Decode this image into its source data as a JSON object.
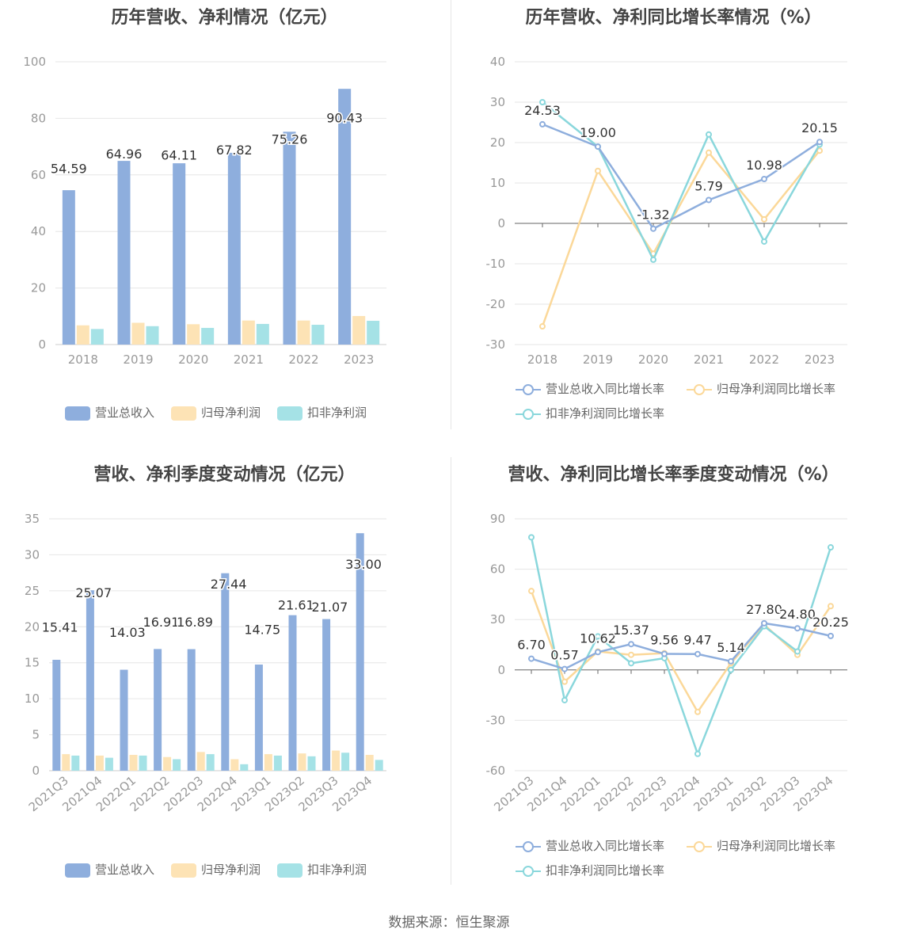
{
  "chart_data": [
    {
      "type": "bar",
      "title": "历年营收、净利情况（亿元）",
      "categories": [
        "2018",
        "2019",
        "2020",
        "2021",
        "2022",
        "2023"
      ],
      "ylim": [
        0,
        100
      ],
      "yticks": [
        0,
        20,
        40,
        60,
        80,
        100
      ],
      "series": [
        {
          "name": "营业总收入",
          "values": [
            54.59,
            64.96,
            64.11,
            67.82,
            75.26,
            90.43
          ],
          "labels": [
            "54.59",
            "64.96",
            "64.11",
            "67.82",
            "75.26",
            "90.43"
          ]
        },
        {
          "name": "归母净利润",
          "values": [
            6.8,
            7.7,
            7.2,
            8.5,
            8.5,
            10.1
          ]
        },
        {
          "name": "扣非净利润",
          "values": [
            5.5,
            6.5,
            5.9,
            7.3,
            7.0,
            8.4
          ]
        }
      ]
    },
    {
      "type": "line",
      "title": "历年营收、净利同比增长率情况（%）",
      "categories": [
        "2018",
        "2019",
        "2020",
        "2021",
        "2022",
        "2023"
      ],
      "ylim": [
        -30,
        40
      ],
      "yticks": [
        -30,
        -20,
        -10,
        0,
        10,
        20,
        30,
        40
      ],
      "series": [
        {
          "name": "营业总收入同比增长率",
          "values": [
            24.53,
            19.0,
            -1.32,
            5.79,
            10.98,
            20.15
          ],
          "labels": [
            "24.53",
            "19.00",
            "-1.32",
            "5.79",
            "10.98",
            "20.15"
          ]
        },
        {
          "name": "归母净利润同比增长率",
          "values": [
            -25.5,
            13.0,
            -7.5,
            17.5,
            1.0,
            18.0
          ]
        },
        {
          "name": "扣非净利润同比增长率",
          "values": [
            30.0,
            19.0,
            -9.0,
            22.0,
            -4.5,
            19.5
          ]
        }
      ]
    },
    {
      "type": "bar",
      "title": "营收、净利季度变动情况（亿元）",
      "categories": [
        "2021Q3",
        "2021Q4",
        "2022Q1",
        "2022Q2",
        "2022Q3",
        "2022Q4",
        "2023Q1",
        "2023Q2",
        "2023Q3",
        "2023Q4"
      ],
      "ylim": [
        0,
        35
      ],
      "yticks": [
        0,
        5,
        10,
        15,
        20,
        25,
        30,
        35
      ],
      "series": [
        {
          "name": "营业总收入",
          "values": [
            15.41,
            25.07,
            14.03,
            16.91,
            16.89,
            27.44,
            14.75,
            21.61,
            21.07,
            33.0
          ],
          "labels": [
            "15.41",
            "25.07",
            "14.03",
            "16.91",
            "16.89",
            "27.44",
            "14.75",
            "21.61",
            "21.07",
            "33.00"
          ]
        },
        {
          "name": "归母净利润",
          "values": [
            2.3,
            2.1,
            2.2,
            1.9,
            2.6,
            1.6,
            2.3,
            2.4,
            2.8,
            2.2
          ]
        },
        {
          "name": "扣非净利润",
          "values": [
            2.1,
            1.8,
            2.1,
            1.6,
            2.3,
            0.9,
            2.1,
            2.0,
            2.5,
            1.5
          ]
        }
      ]
    },
    {
      "type": "line",
      "title": "营收、净利同比增长率季度变动情况（%）",
      "categories": [
        "2021Q3",
        "2021Q4",
        "2022Q1",
        "2022Q2",
        "2022Q3",
        "2022Q4",
        "2023Q1",
        "2023Q2",
        "2023Q3",
        "2023Q4"
      ],
      "ylim": [
        -60,
        90
      ],
      "yticks": [
        -60,
        -30,
        0,
        30,
        60,
        90
      ],
      "series": [
        {
          "name": "营业总收入同比增长率",
          "values": [
            6.7,
            0.57,
            10.62,
            15.37,
            9.56,
            9.47,
            5.14,
            27.8,
            24.8,
            20.25
          ],
          "labels": [
            "6.70",
            "0.57",
            "10.62",
            "15.37",
            "9.56",
            "9.47",
            "5.14",
            "27.80",
            "24.80",
            "20.25"
          ]
        },
        {
          "name": "归母净利润同比增长率",
          "values": [
            47,
            -7,
            11,
            9,
            10,
            -25,
            4,
            27,
            9,
            38
          ]
        },
        {
          "name": "扣非净利润同比增长率",
          "values": [
            79,
            -18,
            20,
            4,
            7,
            -50,
            0,
            26,
            11,
            73
          ]
        }
      ]
    }
  ],
  "colors": {
    "revenue": "#8eaedd",
    "net_profit": "#fde3b5",
    "deducted_profit": "#a5e2e6",
    "rev_line": "#8eaedd",
    "np_line": "#fbd899",
    "dp_line": "#8ad7dc",
    "axis_text": "#999999",
    "grid": "#e6e6e6"
  },
  "source": "数据来源：恒生聚源"
}
